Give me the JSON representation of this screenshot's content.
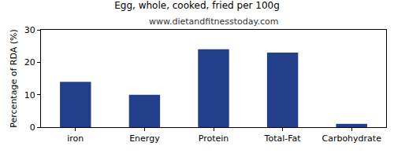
{
  "chart_data": {
    "type": "bar",
    "title": "Egg, whole, cooked, fried per 100g",
    "subtitle": "www.dietandfitnesstoday.com",
    "y_label": "Percentage of RDA (%)",
    "categories": [
      "iron",
      "Energy",
      "Protein",
      "Total-Fat",
      "Carbohydrate"
    ],
    "values": [
      14,
      10,
      24,
      23,
      1
    ],
    "color": "#233e8b",
    "ylim": [
      0,
      30
    ],
    "yticks": [
      0,
      10,
      20,
      30
    ],
    "grid": false
  }
}
